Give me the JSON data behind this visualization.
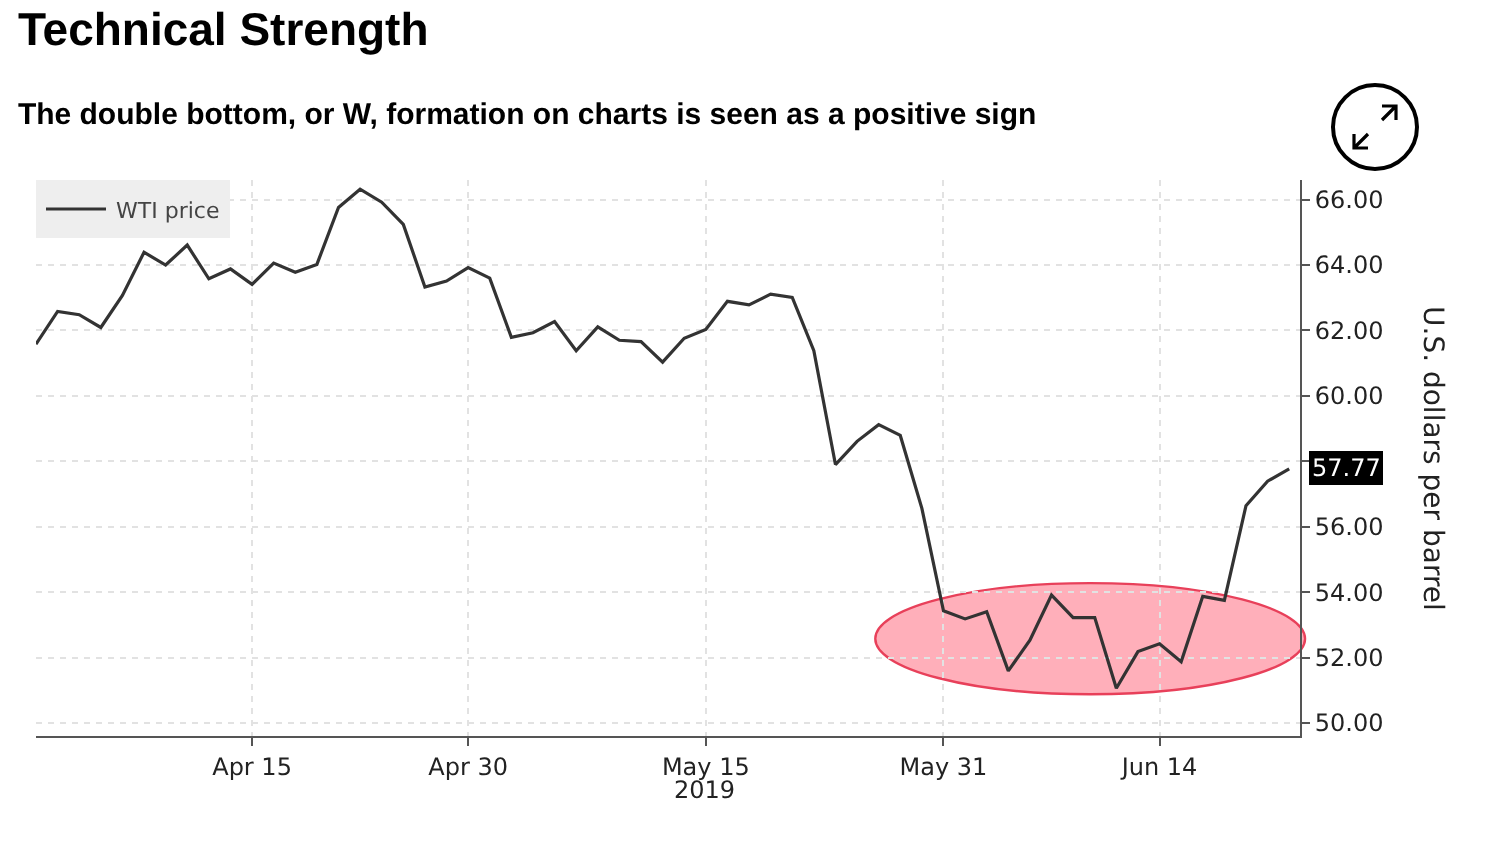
{
  "chart_data": {
    "type": "line",
    "title": "Technical Strength",
    "subtitle": "The double bottom, or W, formation on charts is seen as a positive sign",
    "xlabel": "2019",
    "ylabel": "U.S. dollars per barrel",
    "categories": [
      null,
      null,
      null,
      null,
      null,
      null,
      null,
      null,
      null,
      null,
      "Apr 15",
      null,
      null,
      null,
      null,
      null,
      null,
      null,
      null,
      null,
      "Apr 30",
      null,
      null,
      null,
      null,
      null,
      null,
      null,
      null,
      null,
      null,
      "May 15",
      null,
      null,
      null,
      null,
      null,
      null,
      null,
      null,
      null,
      null,
      "May 31",
      null,
      null,
      null,
      null,
      null,
      null,
      null,
      null,
      null,
      "Jun 14",
      null,
      null,
      null,
      null,
      null,
      null
    ],
    "series": [
      {
        "name": "WTI price",
        "color": "#333333",
        "values": [
          61.58,
          62.58,
          62.48,
          62.09,
          63.07,
          64.39,
          64.0,
          64.61,
          63.58,
          63.88,
          63.41,
          64.06,
          63.78,
          64.02,
          65.76,
          66.32,
          65.92,
          65.24,
          63.33,
          63.51,
          63.92,
          63.6,
          61.79,
          61.93,
          62.27,
          61.38,
          62.11,
          61.7,
          61.66,
          61.03,
          61.76,
          62.03,
          62.89,
          62.78,
          63.11,
          63.01,
          61.38,
          57.9,
          58.61,
          59.12,
          58.79,
          56.56,
          53.43,
          53.18,
          53.4,
          51.59,
          52.53,
          53.91,
          53.22,
          53.22,
          51.06,
          52.18,
          52.42,
          51.87,
          53.87,
          53.75,
          56.64,
          57.39,
          57.77
        ]
      }
    ],
    "annotations": [
      "57.77"
    ],
    "ylim": [
      49.6,
      66.6
    ],
    "yticks": [
      {
        "value": 50,
        "label": "50.00"
      },
      {
        "value": 52,
        "label": "52.00"
      },
      {
        "value": 54,
        "label": "54.00"
      },
      {
        "value": 56,
        "label": "56.00"
      },
      {
        "value": 58,
        "label": null
      },
      {
        "value": 60,
        "label": "60.00"
      },
      {
        "value": 62,
        "label": "62.00"
      },
      {
        "value": 64,
        "label": "64.00"
      },
      {
        "value": 66,
        "label": "66.00"
      }
    ],
    "grid": true,
    "legend": "top left",
    "marker": "none",
    "line_style": "solid"
  }
}
